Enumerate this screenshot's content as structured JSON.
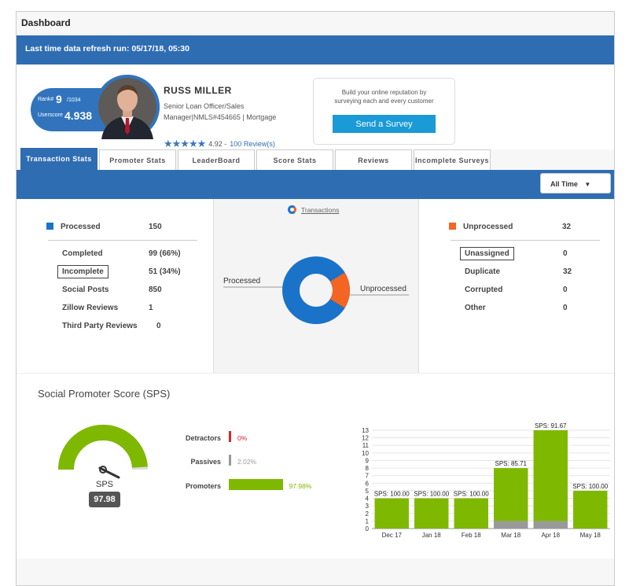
{
  "window": {
    "title": "Dashboard"
  },
  "banner": {
    "refresh_text": "Last time data refresh run: 05/17/18, 05:30"
  },
  "profile": {
    "rank_label": "Rank#",
    "rank_value": "9",
    "rank_total": "/1034",
    "userscore_label": "Userscore",
    "userscore_value": "4.938",
    "name": "RUSS MILLER",
    "title_line1": "Senior Loan Officer/Sales",
    "title_line2": "Manager|NMLS#454665 | Mortgage",
    "stars": "★★★★★",
    "rating": "4.92 -",
    "reviews_link": "100 Review(s)"
  },
  "survey_box": {
    "text_line1": "Build your online reputation by",
    "text_line2": "surveying each and every customer",
    "button_label": "Send a Survey"
  },
  "tabs": [
    {
      "label": "Transaction Stats",
      "active": true
    },
    {
      "label": "Promoter Stats",
      "active": false
    },
    {
      "label": "LeaderBoard",
      "active": false
    },
    {
      "label": "Score Stats",
      "active": false
    },
    {
      "label": "Reviews",
      "active": false
    },
    {
      "label": "Incomplete Surveys",
      "active": false
    }
  ],
  "filter": {
    "selected": "All Time",
    "arrow": "▼"
  },
  "colors": {
    "processed": "#1a73c8",
    "unprocessed": "#f26522",
    "green": "#7fb800",
    "red": "#d62728",
    "gray": "#999999"
  },
  "transactions": {
    "link_label": "Transactions",
    "processed": {
      "label": "Processed",
      "value": "150"
    },
    "left_rows": [
      {
        "label": "Completed",
        "value": "99 (66%)"
      },
      {
        "label": "Incomplete",
        "value": "51 (34%)"
      },
      {
        "label": "Social Posts",
        "value": "850"
      },
      {
        "label": "Zillow Reviews",
        "value": "1"
      },
      {
        "label": "Third Party Reviews",
        "value": "0"
      }
    ],
    "unprocessed": {
      "label": "Unprocessed",
      "value": "32"
    },
    "right_rows": [
      {
        "label": "Unassigned",
        "value": "0"
      },
      {
        "label": "Duplicate",
        "value": "32"
      },
      {
        "label": "Corrupted",
        "value": "0"
      },
      {
        "label": "Other",
        "value": "0"
      }
    ],
    "donut_label_left": "Processed",
    "donut_label_right": "Unprocessed"
  },
  "sps": {
    "title": "Social Promoter Score (SPS)",
    "gauge_label": "SPS",
    "gauge_value": "97.98",
    "gauge_fraction": 0.9798,
    "detractors": {
      "label": "Detractors",
      "pct": "0%",
      "value": 0
    },
    "passives": {
      "label": "Passives",
      "pct": "2.02%",
      "value": 2.02
    },
    "promoters": {
      "label": "Promoters",
      "pct": "97.98%",
      "value": 97.98
    }
  },
  "chart_data": {
    "type": "bar",
    "categories": [
      "Dec 17",
      "Jan 18",
      "Feb 18",
      "Mar 18",
      "Apr 18",
      "May 18"
    ],
    "series": [
      {
        "values": [
          0,
          0,
          0,
          1,
          1,
          0
        ],
        "color": "#999999"
      },
      {
        "values": [
          4,
          4,
          4,
          7,
          12,
          5
        ],
        "color": "#7fb800"
      }
    ],
    "bar_labels": [
      "SPS: 100.00",
      "SPS: 100.00",
      "SPS: 100.00",
      "SPS: 85.71",
      "SPS: 91.67",
      "SPS: 100.00"
    ],
    "y_ticks": [
      "0",
      "1",
      "2",
      "3",
      "4",
      "5",
      "6",
      "7",
      "8",
      "9",
      "10",
      "11",
      "12",
      "13"
    ],
    "ylim": [
      0,
      13
    ],
    "grid": true,
    "stacked": true
  }
}
